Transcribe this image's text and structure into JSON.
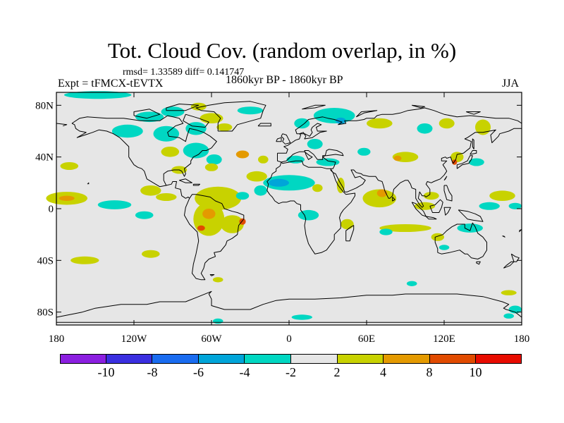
{
  "title": "Tot. Cloud Cov. (random overlap, in %)",
  "stats": "rmsd= 1.33589  diff= 0.141747",
  "experiment": "Expt = tFMCX-tEVTX",
  "center_label": "1860kyr BP - 1860kyr BP",
  "season": "JJA",
  "map": {
    "lon_range": [
      -180,
      180
    ],
    "lat_range": [
      -90,
      90
    ],
    "x_ticks": [
      {
        "lon": -180,
        "label": "180"
      },
      {
        "lon": -120,
        "label": "120W"
      },
      {
        "lon": -60,
        "label": "60W"
      },
      {
        "lon": 0,
        "label": "0"
      },
      {
        "lon": 60,
        "label": "60E"
      },
      {
        "lon": 120,
        "label": "120E"
      },
      {
        "lon": 180,
        "label": "180"
      }
    ],
    "y_ticks": [
      {
        "lat": 80,
        "label": "80N"
      },
      {
        "lat": 40,
        "label": "40N"
      },
      {
        "lat": 0,
        "label": "0"
      },
      {
        "lat": -40,
        "label": "40S"
      },
      {
        "lat": -80,
        "label": "80S"
      }
    ],
    "background_color": "#e6e6e6",
    "coastline_color": "#000000",
    "anomaly_patches": [
      {
        "lon": -148,
        "lat": 88,
        "rx": 26,
        "ry": 3,
        "color": "#00d7c2"
      },
      {
        "lon": -108,
        "lat": 71,
        "rx": 11,
        "ry": 4,
        "color": "#00d7c2"
      },
      {
        "lon": -90,
        "lat": 75,
        "rx": 9,
        "ry": 4,
        "color": "#00d7c2"
      },
      {
        "lon": -70,
        "lat": 79,
        "rx": 6,
        "ry": 3,
        "color": "#c8d200"
      },
      {
        "lon": -60,
        "lat": 70,
        "rx": 9,
        "ry": 4,
        "color": "#c8d200"
      },
      {
        "lon": -30,
        "lat": 76,
        "rx": 10,
        "ry": 3,
        "color": "#00d7c2"
      },
      {
        "lon": -125,
        "lat": 60,
        "rx": 12,
        "ry": 5,
        "color": "#00d7c2"
      },
      {
        "lon": -95,
        "lat": 58,
        "rx": 10,
        "ry": 6,
        "color": "#00d7c2"
      },
      {
        "lon": -72,
        "lat": 62,
        "rx": 8,
        "ry": 5,
        "color": "#00d7c2"
      },
      {
        "lon": -50,
        "lat": 63,
        "rx": 6,
        "ry": 3,
        "color": "#c8d200"
      },
      {
        "lon": -92,
        "lat": 44,
        "rx": 7,
        "ry": 4,
        "color": "#c8d200"
      },
      {
        "lon": -72,
        "lat": 45,
        "rx": 10,
        "ry": 6,
        "color": "#00d7c2"
      },
      {
        "lon": -58,
        "lat": 38,
        "rx": 6,
        "ry": 4,
        "color": "#00d7c2"
      },
      {
        "lon": -36,
        "lat": 42,
        "rx": 5,
        "ry": 3,
        "color": "#e49a00"
      },
      {
        "lon": -20,
        "lat": 38,
        "rx": 4,
        "ry": 3,
        "color": "#c8d200"
      },
      {
        "lon": -85,
        "lat": 30,
        "rx": 6,
        "ry": 3,
        "color": "#c8d200"
      },
      {
        "lon": -60,
        "lat": 32,
        "rx": 5,
        "ry": 3,
        "color": "#c8d200"
      },
      {
        "lon": -170,
        "lat": 33,
        "rx": 7,
        "ry": 3,
        "color": "#c8d200"
      },
      {
        "lon": -172,
        "lat": 8,
        "rx": 16,
        "ry": 5,
        "color": "#c8d200"
      },
      {
        "lon": -172,
        "lat": 8,
        "rx": 6,
        "ry": 2,
        "color": "#e49a00"
      },
      {
        "lon": -135,
        "lat": 3,
        "rx": 13,
        "ry": 3.5,
        "color": "#00d7c2"
      },
      {
        "lon": -107,
        "lat": 14,
        "rx": 8,
        "ry": 4,
        "color": "#c8d200"
      },
      {
        "lon": -95,
        "lat": 9,
        "rx": 8,
        "ry": 3,
        "color": "#c8d200"
      },
      {
        "lon": -112,
        "lat": -5,
        "rx": 7,
        "ry": 3,
        "color": "#00d7c2"
      },
      {
        "lon": -55,
        "lat": 8,
        "rx": 18,
        "ry": 9,
        "color": "#c8d200"
      },
      {
        "lon": -62,
        "lat": -8,
        "rx": 12,
        "ry": 13,
        "color": "#c8d200"
      },
      {
        "lon": -62,
        "lat": -4,
        "rx": 5,
        "ry": 4,
        "color": "#e49a00"
      },
      {
        "lon": -44,
        "lat": -12,
        "rx": 9,
        "ry": 7,
        "color": "#c8d200"
      },
      {
        "lon": -36,
        "lat": -10,
        "rx": 2.5,
        "ry": 2.5,
        "color": "#e14b00"
      },
      {
        "lon": -68,
        "lat": -15,
        "rx": 3,
        "ry": 2,
        "color": "#e14b00"
      },
      {
        "lon": -36,
        "lat": 10,
        "rx": 5,
        "ry": 3,
        "color": "#00d7c2"
      },
      {
        "lon": -22,
        "lat": 14,
        "rx": 5,
        "ry": 4,
        "color": "#00d7c2"
      },
      {
        "lon": -158,
        "lat": -40,
        "rx": 11,
        "ry": 3,
        "color": "#c8d200"
      },
      {
        "lon": -107,
        "lat": -35,
        "rx": 7,
        "ry": 3,
        "color": "#c8d200"
      },
      {
        "lon": -55,
        "lat": -55,
        "rx": 4,
        "ry": 2,
        "color": "#c8d200"
      },
      {
        "lon": 35,
        "lat": 72,
        "rx": 16,
        "ry": 6,
        "color": "#00d7c2"
      },
      {
        "lon": 10,
        "lat": 66,
        "rx": 6,
        "ry": 4,
        "color": "#00d7c2"
      },
      {
        "lon": 40,
        "lat": 68,
        "rx": 4,
        "ry": 2.5,
        "color": "#00a5d9"
      },
      {
        "lon": 70,
        "lat": 66,
        "rx": 10,
        "ry": 4,
        "color": "#c8d200"
      },
      {
        "lon": 105,
        "lat": 62,
        "rx": 6,
        "ry": 4,
        "color": "#00d7c2"
      },
      {
        "lon": 122,
        "lat": 66,
        "rx": 6,
        "ry": 4,
        "color": "#c8d200"
      },
      {
        "lon": 150,
        "lat": 63,
        "rx": 6,
        "ry": 6,
        "color": "#c8d200"
      },
      {
        "lon": 20,
        "lat": 50,
        "rx": 6,
        "ry": 4,
        "color": "#00d7c2"
      },
      {
        "lon": 5,
        "lat": 38,
        "rx": 7,
        "ry": 3,
        "color": "#00d7c2"
      },
      {
        "lon": 30,
        "lat": 36,
        "rx": 9,
        "ry": 3,
        "color": "#00d7c2"
      },
      {
        "lon": 58,
        "lat": 44,
        "rx": 5,
        "ry": 3,
        "color": "#00d7c2"
      },
      {
        "lon": 90,
        "lat": 40,
        "rx": 10,
        "ry": 4,
        "color": "#c8d200"
      },
      {
        "lon": 84,
        "lat": 39,
        "rx": 3,
        "ry": 2,
        "color": "#e49a00"
      },
      {
        "lon": 130,
        "lat": 40,
        "rx": 5,
        "ry": 4,
        "color": "#c8d200"
      },
      {
        "lon": 128,
        "lat": 36,
        "rx": 2,
        "ry": 2,
        "color": "#e14b00"
      },
      {
        "lon": 145,
        "lat": 36,
        "rx": 6,
        "ry": 3,
        "color": "#00d7c2"
      },
      {
        "lon": 0,
        "lat": 20,
        "rx": 20,
        "ry": 6,
        "color": "#00d7c2"
      },
      {
        "lon": -8,
        "lat": 20,
        "rx": 8,
        "ry": 3,
        "color": "#00a5d9"
      },
      {
        "lon": -25,
        "lat": 25,
        "rx": 8,
        "ry": 4,
        "color": "#c8d200"
      },
      {
        "lon": 22,
        "lat": 16,
        "rx": 4,
        "ry": 3,
        "color": "#c8d200"
      },
      {
        "lon": 40,
        "lat": 18,
        "rx": 3,
        "ry": 6,
        "color": "#c8d200"
      },
      {
        "lon": 70,
        "lat": 8,
        "rx": 13,
        "ry": 7,
        "color": "#c8d200"
      },
      {
        "lon": 72,
        "lat": 12,
        "rx": 4,
        "ry": 3,
        "color": "#e49a00"
      },
      {
        "lon": 110,
        "lat": 10,
        "rx": 6,
        "ry": 3,
        "color": "#c8d200"
      },
      {
        "lon": 165,
        "lat": 10,
        "rx": 10,
        "ry": 4,
        "color": "#c8d200"
      },
      {
        "lon": 155,
        "lat": 2,
        "rx": 8,
        "ry": 3,
        "color": "#00d7c2"
      },
      {
        "lon": 175,
        "lat": 2,
        "rx": 5,
        "ry": 2.5,
        "color": "#00d7c2"
      },
      {
        "lon": 105,
        "lat": 2,
        "rx": 8,
        "ry": 3,
        "color": "#c8d200"
      },
      {
        "lon": 15,
        "lat": -5,
        "rx": 8,
        "ry": 4,
        "color": "#00d7c2"
      },
      {
        "lon": 45,
        "lat": -12,
        "rx": 5,
        "ry": 4,
        "color": "#c8d200"
      },
      {
        "lon": 90,
        "lat": -15,
        "rx": 20,
        "ry": 3,
        "color": "#c8d200"
      },
      {
        "lon": 75,
        "lat": -18,
        "rx": 5,
        "ry": 2.5,
        "color": "#00d7c2"
      },
      {
        "lon": 140,
        "lat": -15,
        "rx": 10,
        "ry": 3.5,
        "color": "#00d7c2"
      },
      {
        "lon": 115,
        "lat": -22,
        "rx": 5,
        "ry": 3,
        "color": "#c8d200"
      },
      {
        "lon": 120,
        "lat": -30,
        "rx": 4,
        "ry": 2,
        "color": "#00d7c2"
      },
      {
        "lon": 95,
        "lat": -58,
        "rx": 4,
        "ry": 2,
        "color": "#00d7c2"
      },
      {
        "lon": 170,
        "lat": -65,
        "rx": 6,
        "ry": 2,
        "color": "#c8d200"
      },
      {
        "lon": 175,
        "lat": -78,
        "rx": 5,
        "ry": 3,
        "color": "#00d7c2"
      },
      {
        "lon": 170,
        "lat": -83,
        "rx": 4,
        "ry": 2,
        "color": "#00d7c2"
      },
      {
        "lon": 10,
        "lat": -84,
        "rx": 8,
        "ry": 2,
        "color": "#00d7c2"
      },
      {
        "lon": -55,
        "lat": -87,
        "rx": 4,
        "ry": 2,
        "color": "#00d7c2"
      }
    ]
  },
  "colorbar": {
    "colors": [
      "#8b1fe0",
      "#3a2fe0",
      "#1a6cf0",
      "#00a5d9",
      "#00d7c2",
      "#e6e6e6",
      "#c8d200",
      "#e49a00",
      "#e14b00",
      "#e80c00"
    ],
    "labels": [
      "-10",
      "-8",
      "-6",
      "-4",
      "-2",
      "2",
      "4",
      "8",
      "10"
    ]
  }
}
